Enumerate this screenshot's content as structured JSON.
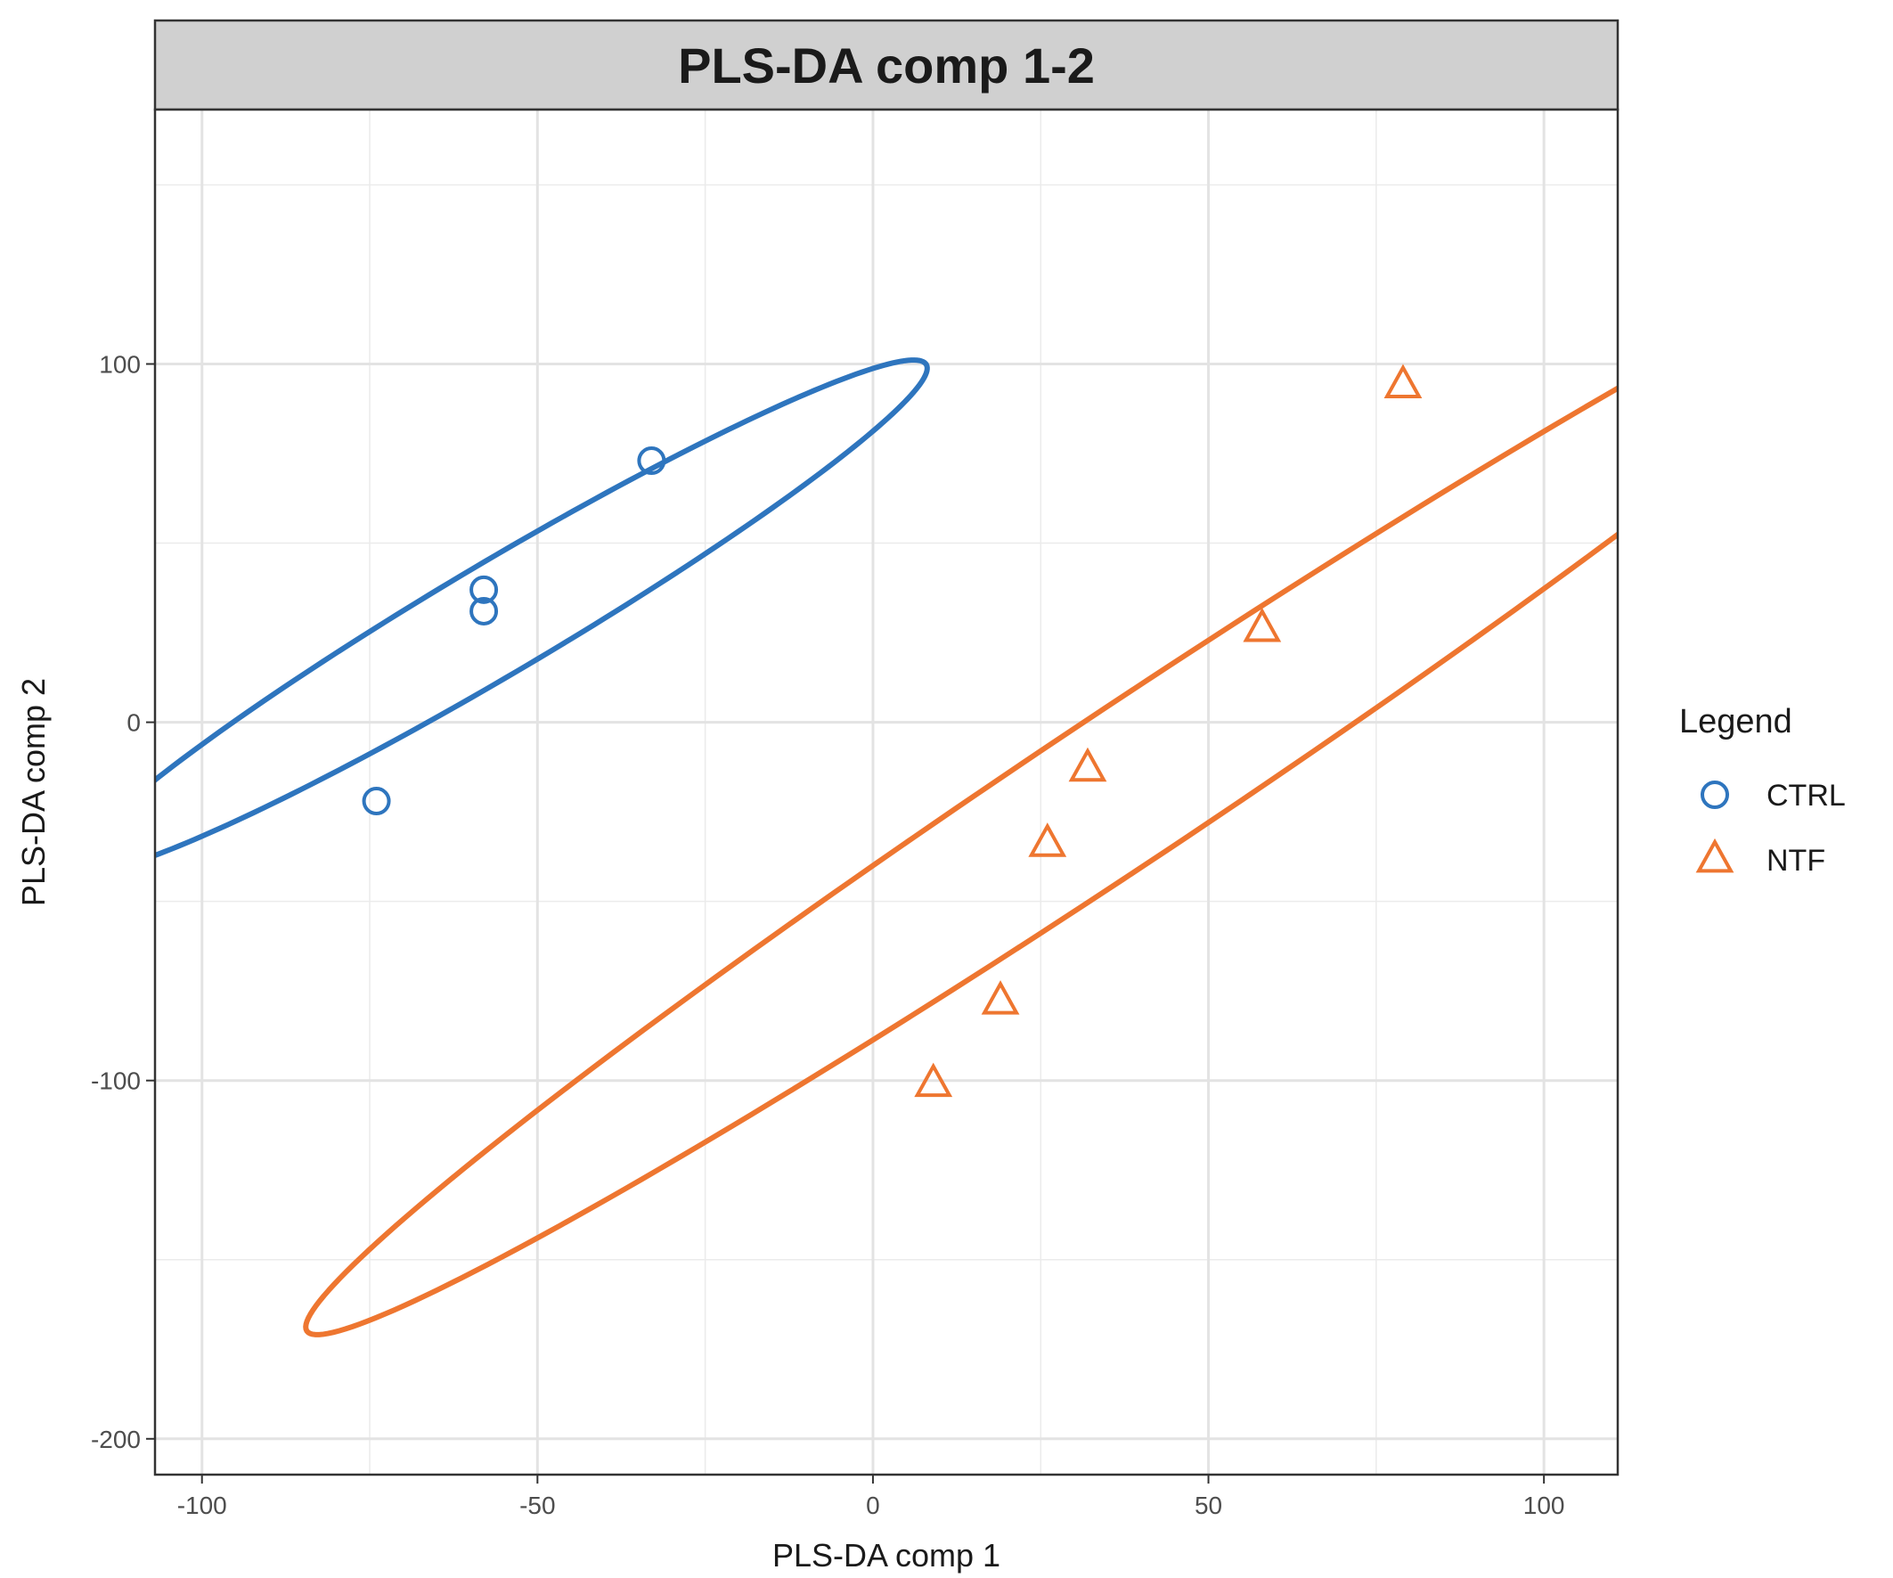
{
  "chart_data": {
    "type": "scatter",
    "title": "PLS-DA comp 1-2",
    "xlabel": "PLS-DA comp 1",
    "ylabel": "PLS-DA comp 2",
    "xlim": [
      -107,
      111
    ],
    "ylim": [
      -210,
      171
    ],
    "x_ticks": [
      -100,
      -50,
      0,
      50,
      100
    ],
    "x_tick_labels": [
      "-100",
      "-50",
      "0",
      "50",
      "100"
    ],
    "y_ticks": [
      -200,
      -100,
      0,
      100
    ],
    "y_tick_labels": [
      "-200",
      "-100",
      "0",
      "100"
    ],
    "x_minor_ticks": [
      -75,
      -25,
      25,
      75
    ],
    "y_minor_ticks": [
      -150,
      -50,
      50,
      150
    ],
    "grid": true,
    "legend": {
      "title": "Legend",
      "position": "right"
    },
    "series": [
      {
        "name": "CTRL",
        "marker": "circle",
        "color": "#2E75BE",
        "points": [
          {
            "x": -74,
            "y": -22
          },
          {
            "x": -58,
            "y": 37
          },
          {
            "x": -58,
            "y": 31
          },
          {
            "x": -33,
            "y": 73
          }
        ],
        "ellipse": {
          "cx": -55.5,
          "cy": 29.5,
          "rx": 95,
          "ry": 12,
          "angle_deg": 48.5
        }
      },
      {
        "name": "NTF",
        "marker": "triangle",
        "color": "#EE7630",
        "points": [
          {
            "x": 9,
            "y": -101
          },
          {
            "x": 19,
            "y": -78
          },
          {
            "x": 26,
            "y": -34
          },
          {
            "x": 32,
            "y": -13
          },
          {
            "x": 58,
            "y": 26
          },
          {
            "x": 79,
            "y": 94
          }
        ],
        "ellipse": {
          "cx": 37.5,
          "cy": -18,
          "rx": 195,
          "ry": 16,
          "angle_deg": 51.5
        }
      }
    ]
  }
}
